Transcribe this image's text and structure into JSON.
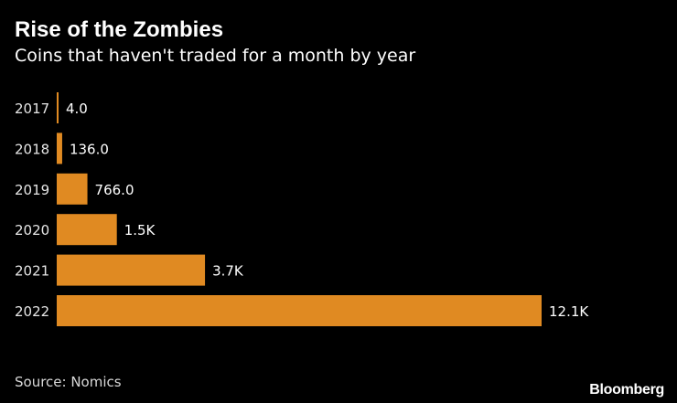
{
  "header": {
    "title": "Rise of the Zombies",
    "subtitle": "Coins that haven't traded for a month by year"
  },
  "footer": {
    "source": "Source: Nomics",
    "brand": "Bloomberg"
  },
  "colors": {
    "background": "#000000",
    "bar": "#e08a22",
    "text": "#ffffff"
  },
  "chart_data": {
    "type": "bar",
    "orientation": "horizontal",
    "title": "Rise of the Zombies",
    "subtitle": "Coins that haven't traded for a month by year",
    "xlabel": "",
    "ylabel": "",
    "grid": false,
    "legend": "none",
    "xlim": [
      0,
      12100
    ],
    "categories": [
      "2017",
      "2018",
      "2019",
      "2020",
      "2021",
      "2022"
    ],
    "values": [
      4,
      136,
      766,
      1500,
      3700,
      12100
    ],
    "data_labels": [
      "4.0",
      "136.0",
      "766.0",
      "1.5K",
      "3.7K",
      "12.1K"
    ]
  }
}
